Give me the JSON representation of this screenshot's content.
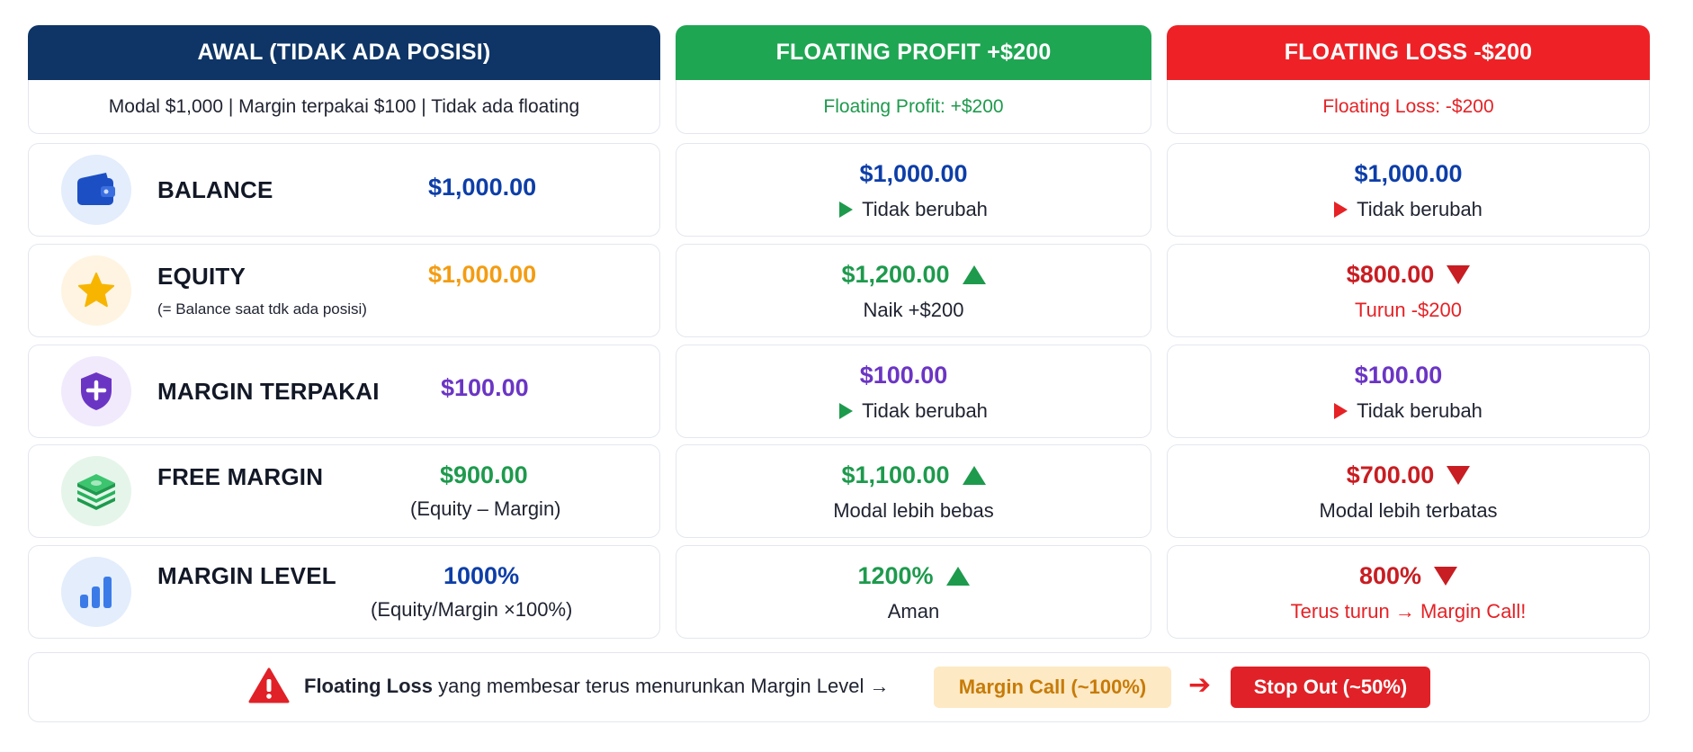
{
  "columns": {
    "awal": {
      "header": "AWAL (TIDAK ADA POSISI)",
      "sub": "Modal $1,000 | Margin terpakai $100 | Tidak ada floating",
      "rows": [
        {
          "label": "BALANCE",
          "icon": "wallet-icon",
          "value": "$1,000.00",
          "value_color": "#0d3ea8"
        },
        {
          "label": "EQUITY",
          "sublabel": "(= Balance saat tdk ada posisi)",
          "icon": "star-icon",
          "value": "$1,000.00",
          "value_color": "#f39c12"
        },
        {
          "label": "MARGIN TERPAKAI",
          "icon": "shield-icon",
          "value": "$100.00",
          "value_color": "#6b35c4"
        },
        {
          "label": "FREE MARGIN",
          "icon": "money-stack-icon",
          "value": "$900.00",
          "note": "(Equity – Margin)",
          "value_color": "#1e9a4d"
        },
        {
          "label": "MARGIN LEVEL",
          "icon": "bar-chart-icon",
          "value": "1000%",
          "note": "(Equity/Margin ×100%)",
          "value_color": "#0d3ea8"
        }
      ]
    },
    "profit": {
      "header": "FLOATING PROFIT +$200",
      "sub": "Floating Profit: +$200",
      "rows": [
        {
          "value": "$1,000.00",
          "note": "Tidak berubah"
        },
        {
          "value": "$1,200.00",
          "note": "Naik +$200"
        },
        {
          "value": "$100.00",
          "note": "Tidak berubah"
        },
        {
          "value": "$1,100.00",
          "note": "Modal lebih bebas"
        },
        {
          "value": "1200%",
          "note": "Aman"
        }
      ]
    },
    "loss": {
      "header": "FLOATING LOSS -$200",
      "sub": "Floating Loss: -$200",
      "rows": [
        {
          "value": "$1,000.00",
          "note": "Tidak berubah"
        },
        {
          "value": "$800.00",
          "note": "Turun -$200"
        },
        {
          "value": "$100.00",
          "note": "Tidak berubah"
        },
        {
          "value": "$700.00",
          "note": "Modal lebih terbatas"
        },
        {
          "value": "800%",
          "note": "Terus turun → Margin Call!"
        }
      ]
    }
  },
  "footer": {
    "bold": "Floating Loss",
    "text": " yang membesar terus menurunkan Margin Level →",
    "margin_call": "Margin Call (~100%)",
    "arrow": "➔",
    "stop_out": "Stop Out (~50%)",
    "icon": "warning-icon"
  },
  "colors": {
    "navy": "#0e3566",
    "green": "#1fa653",
    "red": "#ee2226"
  }
}
